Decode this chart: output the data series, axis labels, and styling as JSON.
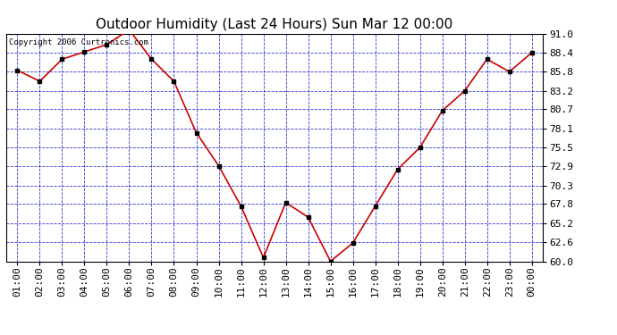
{
  "title": "Outdoor Humidity (Last 24 Hours) Sun Mar 12 00:00",
  "copyright": "Copyright 2006 Curtronics.com",
  "x_labels": [
    "01:00",
    "02:00",
    "03:00",
    "04:00",
    "05:00",
    "06:00",
    "07:00",
    "08:00",
    "09:00",
    "10:00",
    "11:00",
    "12:00",
    "13:00",
    "14:00",
    "15:00",
    "16:00",
    "17:00",
    "18:00",
    "19:00",
    "20:00",
    "21:00",
    "22:00",
    "23:00",
    "00:00"
  ],
  "y_values": [
    86.0,
    84.5,
    87.5,
    88.5,
    89.5,
    91.5,
    87.5,
    84.5,
    77.5,
    73.0,
    67.5,
    60.5,
    68.0,
    66.0,
    60.0,
    62.5,
    67.5,
    72.5,
    75.5,
    80.5,
    83.2,
    87.5,
    85.8,
    88.4
  ],
  "y_ticks": [
    60.0,
    62.6,
    65.2,
    67.8,
    70.3,
    72.9,
    75.5,
    78.1,
    80.7,
    83.2,
    85.8,
    88.4,
    91.0
  ],
  "y_tick_labels": [
    "60.0",
    "62.6",
    "65.2",
    "67.8",
    "70.3",
    "72.9",
    "75.5",
    "78.1",
    "80.7",
    "83.2",
    "85.8",
    "88.4",
    "91.0"
  ],
  "y_min": 60.0,
  "y_max": 91.0,
  "line_color": "#cc0000",
  "marker_color": "#000000",
  "fig_bg_color": "#ffffff",
  "plot_bg_color": "#ffffff",
  "grid_color": "#0000cc",
  "title_fontsize": 11,
  "tick_fontsize": 8,
  "copyright_fontsize": 6.5
}
